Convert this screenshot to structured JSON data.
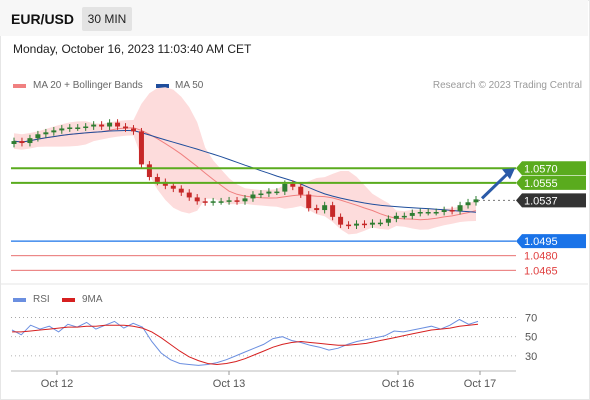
{
  "header": {
    "symbol": "EUR/USD",
    "timeframe": "30 MIN"
  },
  "timestamp": "Monday, October 16, 2023 11:03:40 AM CET",
  "legend": {
    "ma20": "MA 20 + Bollinger Bands",
    "ma50": "MA 50",
    "credit": "Research © 2023 Trading Central"
  },
  "rsi_legend": {
    "rsi": "RSI",
    "ma9": "9MA"
  },
  "colors": {
    "resistance": "#5aab1e",
    "pivot": "#1a73e8",
    "support": "#e04040",
    "ma20": "#f08080",
    "ma50": "#1f4e9c",
    "bands": "#fddcdc",
    "bull": "#2e7d32",
    "bear": "#c62828",
    "rsi": "#6b8fe0",
    "rsi_ma": "#d62020"
  },
  "chart_data": [
    {
      "type": "candlestick",
      "title": "EUR/USD",
      "x_labels": [
        "Oct 12",
        "Oct 13",
        "Oct 16",
        "Oct 17"
      ],
      "price_range": [
        1.0455,
        1.063
      ],
      "close_series": [
        1.0598,
        1.0596,
        1.0601,
        1.0605,
        1.0607,
        1.0609,
        1.0611,
        1.0612,
        1.0612,
        1.0613,
        1.0615,
        1.0613,
        1.0617,
        1.0613,
        1.0611,
        1.0608,
        1.0574,
        1.0561,
        1.0556,
        1.0552,
        1.0549,
        1.0545,
        1.054,
        1.0536,
        1.0535,
        1.0536,
        1.0536,
        1.0537,
        1.0536,
        1.0539,
        1.0543,
        1.0544,
        1.0546,
        1.0546,
        1.0554,
        1.0551,
        1.0543,
        1.0529,
        1.0527,
        1.0532,
        1.052,
        1.0512,
        1.0511,
        1.0513,
        1.0512,
        1.0514,
        1.0514,
        1.0518,
        1.0521,
        1.0521,
        1.0524,
        1.0525,
        1.0525,
        1.0525,
        1.0527,
        1.0526,
        1.0532,
        1.0535,
        1.0538
      ],
      "levels": {
        "resistance": [
          1.057,
          1.0555
        ],
        "current": 1.0537,
        "pivot": 1.0495,
        "support": [
          1.048,
          1.0465
        ]
      },
      "level_labels": [
        "1.0570",
        "1.0555",
        "1.0537",
        "1.0495",
        "1.0480",
        "1.0465"
      ],
      "series": [
        {
          "name": "MA 20 + Bollinger Bands"
        },
        {
          "name": "MA 50"
        }
      ],
      "arrow": "up"
    },
    {
      "type": "line",
      "title": "RSI",
      "y_ticks": [
        70,
        50,
        30
      ],
      "ylim": [
        10,
        80
      ],
      "series": [
        {
          "name": "RSI",
          "values": [
            57,
            52,
            62,
            58,
            61,
            55,
            63,
            60,
            65,
            58,
            62,
            66,
            59,
            64,
            60,
            45,
            33,
            26,
            22,
            21,
            20,
            21,
            23,
            26,
            30,
            34,
            38,
            42,
            48,
            50,
            46,
            44,
            41,
            39,
            36,
            38,
            42,
            45,
            47,
            49,
            51,
            56,
            55,
            57,
            59,
            61,
            58,
            62,
            68,
            63,
            66
          ]
        },
        {
          "name": "9MA",
          "values": [
            55,
            55,
            56,
            57,
            58,
            59,
            60,
            60,
            61,
            61,
            62,
            62,
            62,
            61,
            59,
            55,
            49,
            42,
            35,
            29,
            25,
            22,
            21,
            22,
            24,
            27,
            31,
            35,
            39,
            42,
            44,
            45,
            44,
            43,
            42,
            41,
            41,
            42,
            43,
            45,
            47,
            49,
            51,
            53,
            55,
            57,
            58,
            59,
            61,
            62,
            63
          ]
        }
      ]
    }
  ]
}
